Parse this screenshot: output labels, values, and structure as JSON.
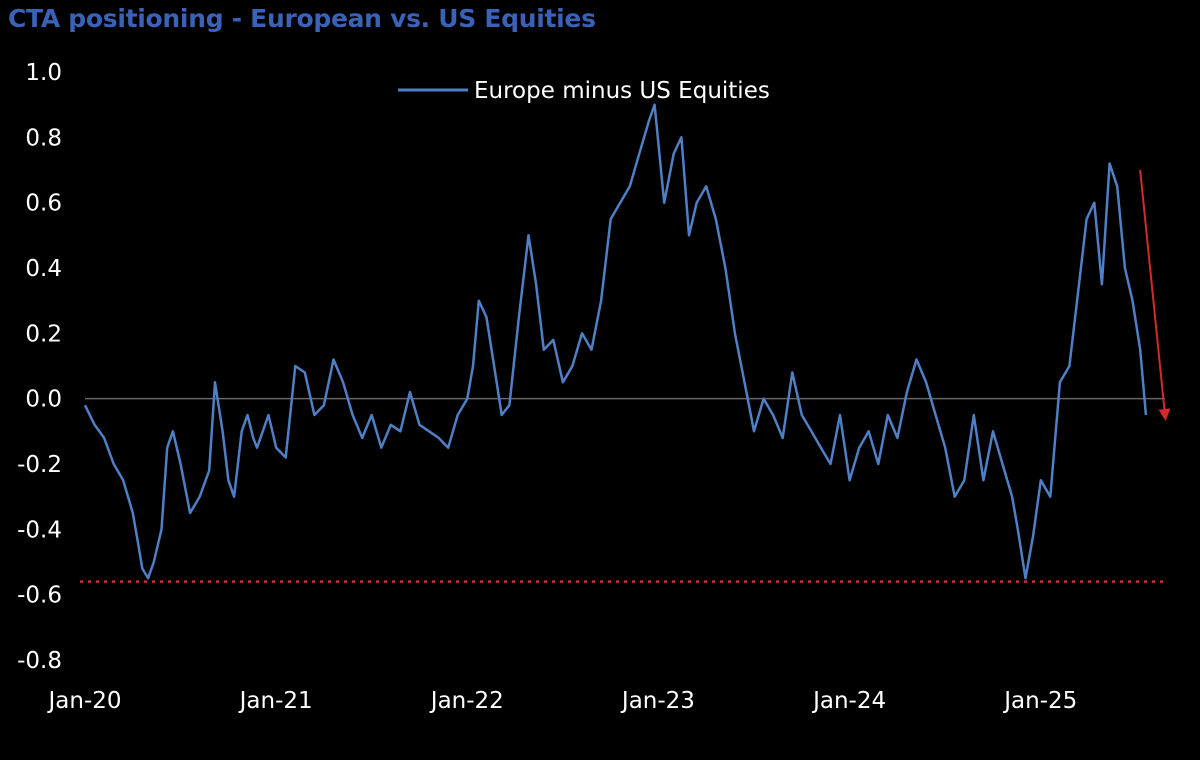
{
  "chart_data": {
    "type": "line",
    "title": "CTA positioning - European vs. US Equities",
    "xlabel": "",
    "ylabel": "",
    "ylim": [
      -0.8,
      1.0
    ],
    "yticks": [
      "1.0",
      "0.8",
      "0.6",
      "0.4",
      "0.2",
      "0.0",
      "-0.2",
      "-0.4",
      "-0.6",
      "-0.8"
    ],
    "ytick_values": [
      1.0,
      0.8,
      0.6,
      0.4,
      0.2,
      0.0,
      -0.2,
      -0.4,
      -0.6,
      -0.8
    ],
    "xlim": [
      2020.0,
      2025.65
    ],
    "xticks": [
      "Jan-20",
      "Jan-21",
      "Jan-22",
      "Jan-23",
      "Jan-24",
      "Jan-25"
    ],
    "xtick_values": [
      2020.0,
      2021.0,
      2022.0,
      2023.0,
      2024.0,
      2025.0
    ],
    "grid": false,
    "legend": {
      "position": "top-center",
      "entries": [
        "Europe minus US Equities"
      ]
    },
    "colors": {
      "series": "#4f7fc4",
      "reference": "#d42a2a",
      "zero_line": "#666666",
      "title": "#3a62b8"
    },
    "reference_lines": [
      {
        "name": "zero-line",
        "y": 0.0
      },
      {
        "name": "low-reference-line",
        "y": -0.56
      }
    ],
    "annotation_arrow": {
      "from": [
        2025.52,
        0.7
      ],
      "to": [
        2025.65,
        -0.05
      ]
    },
    "series": [
      {
        "name": "Europe minus US Equities",
        "x": [
          2020.0,
          2020.05,
          2020.1,
          2020.15,
          2020.2,
          2020.25,
          2020.28,
          2020.3,
          2020.33,
          2020.36,
          2020.4,
          2020.43,
          2020.46,
          2020.5,
          2020.55,
          2020.6,
          2020.65,
          2020.68,
          2020.72,
          2020.75,
          2020.78,
          2020.82,
          2020.85,
          2020.88,
          2020.9,
          2020.93,
          2020.96,
          2021.0,
          2021.05,
          2021.1,
          2021.15,
          2021.2,
          2021.25,
          2021.3,
          2021.35,
          2021.4,
          2021.45,
          2021.5,
          2021.55,
          2021.6,
          2021.65,
          2021.7,
          2021.75,
          2021.8,
          2021.85,
          2021.9,
          2021.95,
          2022.0,
          2022.03,
          2022.06,
          2022.1,
          2022.14,
          2022.18,
          2022.22,
          2022.27,
          2022.32,
          2022.36,
          2022.4,
          2022.45,
          2022.5,
          2022.55,
          2022.6,
          2022.65,
          2022.7,
          2022.75,
          2022.8,
          2022.85,
          2022.9,
          2022.95,
          2022.98,
          2023.03,
          2023.08,
          2023.12,
          2023.16,
          2023.2,
          2023.25,
          2023.3,
          2023.35,
          2023.4,
          2023.45,
          2023.5,
          2023.55,
          2023.6,
          2023.65,
          2023.7,
          2023.75,
          2023.8,
          2023.85,
          2023.9,
          2023.95,
          2024.0,
          2024.05,
          2024.1,
          2024.15,
          2024.2,
          2024.25,
          2024.3,
          2024.35,
          2024.4,
          2024.45,
          2024.5,
          2024.55,
          2024.6,
          2024.65,
          2024.7,
          2024.75,
          2024.8,
          2024.85,
          2024.88,
          2024.92,
          2024.96,
          2025.0,
          2025.05,
          2025.1,
          2025.15,
          2025.2,
          2025.24,
          2025.28,
          2025.32,
          2025.36,
          2025.4,
          2025.44,
          2025.48,
          2025.52,
          2025.55
        ],
        "values": [
          -0.02,
          -0.08,
          -0.12,
          -0.2,
          -0.25,
          -0.35,
          -0.45,
          -0.52,
          -0.55,
          -0.5,
          -0.4,
          -0.15,
          -0.1,
          -0.2,
          -0.35,
          -0.3,
          -0.22,
          0.05,
          -0.1,
          -0.25,
          -0.3,
          -0.1,
          -0.05,
          -0.12,
          -0.15,
          -0.1,
          -0.05,
          -0.15,
          -0.18,
          0.1,
          0.08,
          -0.05,
          -0.02,
          0.12,
          0.05,
          -0.05,
          -0.12,
          -0.05,
          -0.15,
          -0.08,
          -0.1,
          0.02,
          -0.08,
          -0.1,
          -0.12,
          -0.15,
          -0.05,
          0.0,
          0.1,
          0.3,
          0.25,
          0.1,
          -0.05,
          -0.02,
          0.25,
          0.5,
          0.35,
          0.15,
          0.18,
          0.05,
          0.1,
          0.2,
          0.15,
          0.3,
          0.55,
          0.6,
          0.65,
          0.75,
          0.85,
          0.9,
          0.6,
          0.75,
          0.8,
          0.5,
          0.6,
          0.65,
          0.55,
          0.4,
          0.2,
          0.05,
          -0.1,
          0.0,
          -0.05,
          -0.12,
          0.08,
          -0.05,
          -0.1,
          -0.15,
          -0.2,
          -0.05,
          -0.25,
          -0.15,
          -0.1,
          -0.2,
          -0.05,
          -0.12,
          0.02,
          0.12,
          0.05,
          -0.05,
          -0.15,
          -0.3,
          -0.25,
          -0.05,
          -0.25,
          -0.1,
          -0.2,
          -0.3,
          -0.4,
          -0.55,
          -0.42,
          -0.25,
          -0.3,
          0.05,
          0.1,
          0.35,
          0.55,
          0.6,
          0.35,
          0.72,
          0.65,
          0.4,
          0.3,
          0.15,
          -0.05
        ]
      }
    ]
  }
}
